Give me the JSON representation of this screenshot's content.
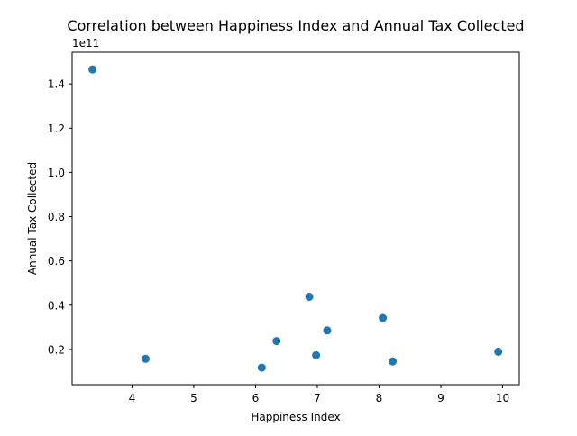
{
  "chart_data": {
    "type": "scatter",
    "title": "Correlation between Happiness Index and Annual Tax Collected",
    "xlabel": "Happiness Index",
    "ylabel": "Annual Tax Collected",
    "y_offset_label": "1e11",
    "y_scale_factor": 100000000000,
    "xlim": [
      3.03,
      10.27
    ],
    "ylim": [
      4100000000,
      154300000000
    ],
    "x_ticks": [
      4,
      5,
      6,
      7,
      8,
      9,
      10
    ],
    "x_tick_labels": [
      "4",
      "5",
      "6",
      "7",
      "8",
      "9",
      "10"
    ],
    "y_ticks": [
      20000000000,
      40000000000,
      60000000000,
      80000000000,
      100000000000,
      120000000000,
      140000000000
    ],
    "y_tick_labels": [
      "0.2",
      "0.4",
      "0.6",
      "0.8",
      "1.0",
      "1.2",
      "1.4"
    ],
    "grid": false,
    "marker_color": "#1f77b4",
    "points": [
      {
        "x": 3.36,
        "y": 146500000000
      },
      {
        "x": 4.22,
        "y": 15800000000
      },
      {
        "x": 6.1,
        "y": 11800000000
      },
      {
        "x": 6.34,
        "y": 23800000000
      },
      {
        "x": 6.87,
        "y": 43800000000
      },
      {
        "x": 6.98,
        "y": 17400000000
      },
      {
        "x": 7.16,
        "y": 28600000000
      },
      {
        "x": 8.06,
        "y": 34200000000
      },
      {
        "x": 8.22,
        "y": 14600000000
      },
      {
        "x": 9.93,
        "y": 19000000000
      }
    ]
  }
}
